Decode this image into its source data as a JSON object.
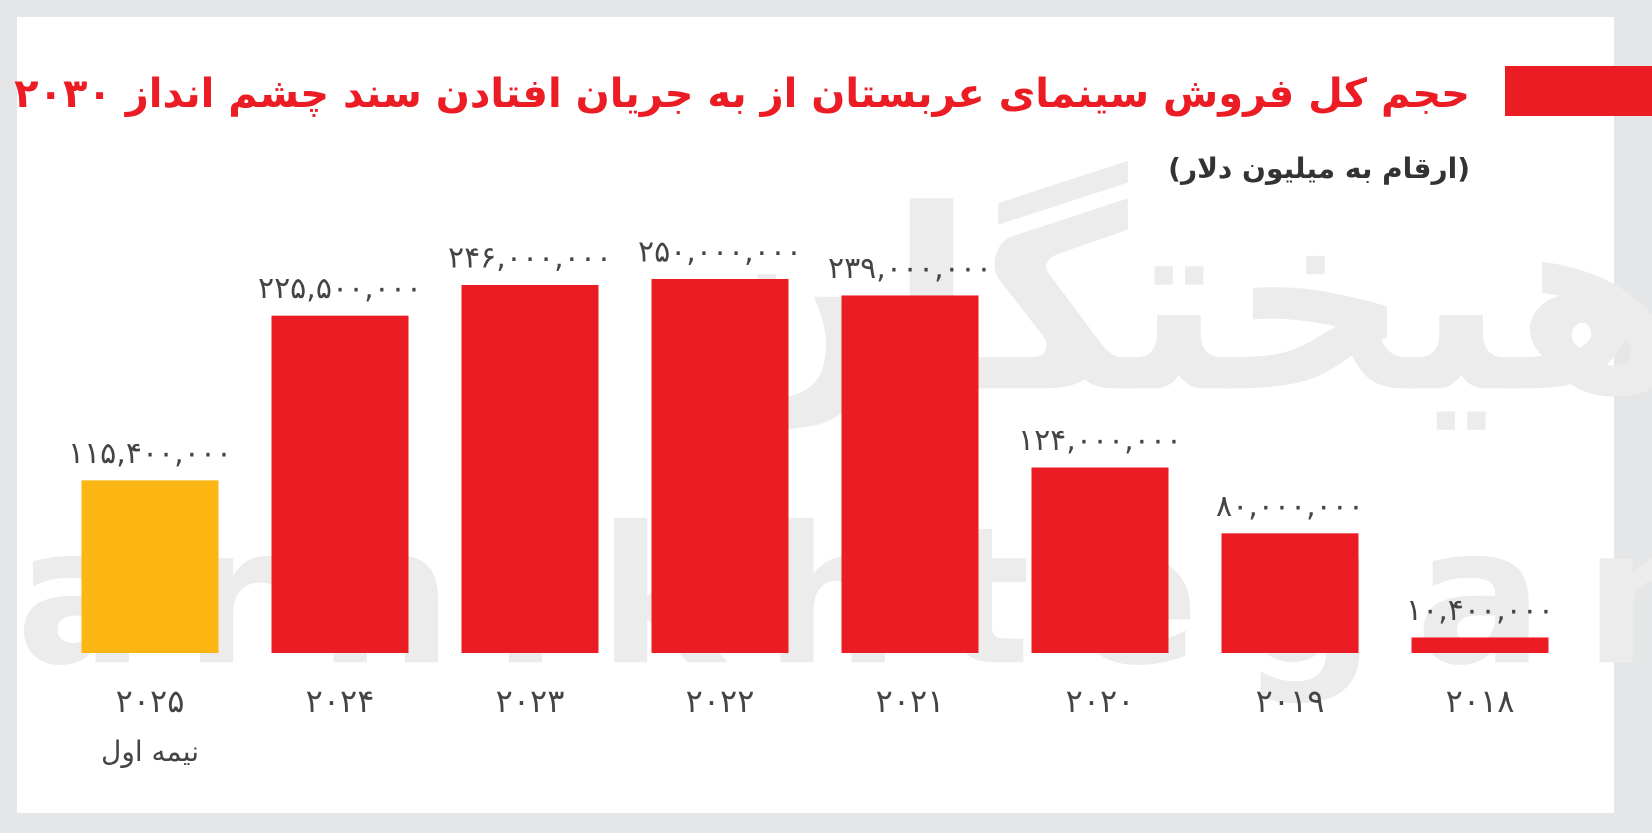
{
  "chart_data": {
    "type": "bar",
    "title": "حجم کل فروش سینمای عربستان از به جریان افتادن سند چشم انداز ۲۰۳۰",
    "subtitle": "(ارقام به میلیون دلار)",
    "categories": [
      "۲۰۲۵",
      "۲۰۲۴",
      "۲۰۲۳",
      "۲۰۲۲",
      "۲۰۲۱",
      "۲۰۲۰",
      "۲۰۱۹",
      "۲۰۱۸"
    ],
    "annotation": "نیمه اول",
    "values": [
      115400000,
      225500000,
      246000000,
      250000000,
      239000000,
      124000000,
      80000000,
      10400000
    ],
    "value_labels": [
      "۱۱۵,۴۰۰,۰۰۰",
      "۲۲۵,۵۰۰,۰۰۰",
      "۲۴۶,۰۰۰,۰۰۰",
      "۲۵۰,۰۰۰,۰۰۰",
      "۲۳۹,۰۰۰,۰۰۰",
      "۱۲۴,۰۰۰,۰۰۰",
      "۸۰,۰۰۰,۰۰۰",
      "۱۰,۴۰۰,۰۰۰"
    ],
    "colors": [
      "#fbb614",
      "#ec1c24",
      "#ec1c24",
      "#ec1c24",
      "#ec1c24",
      "#ec1c24",
      "#ec1c24",
      "#ec1c24"
    ],
    "watermark": "farhikhtegan",
    "watermark_fa": "فرهیختگان"
  }
}
